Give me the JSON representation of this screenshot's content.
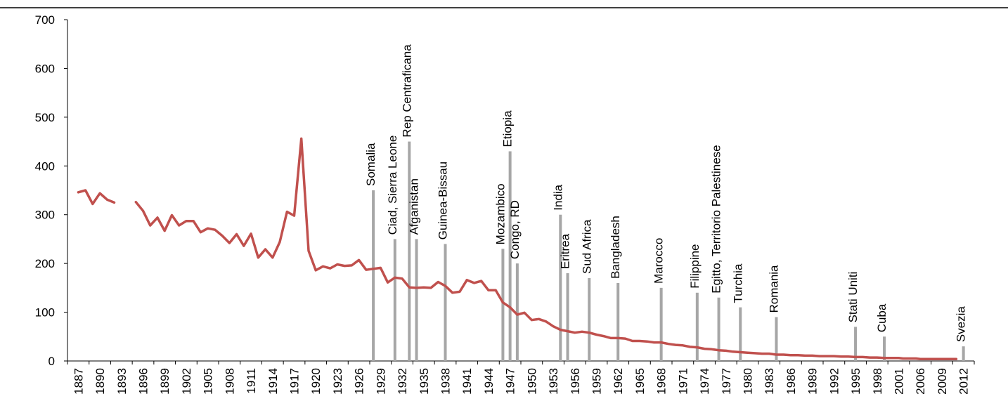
{
  "chart_data": {
    "type": "line",
    "title": "",
    "xlabel": "",
    "ylabel": "",
    "ylim": [
      0,
      700
    ],
    "yticks": [
      0,
      100,
      200,
      300,
      400,
      500,
      600,
      700
    ],
    "grid": false,
    "xtick_labels": [
      "1887",
      "1890",
      "1893",
      "1896",
      "1899",
      "1902",
      "1905",
      "1908",
      "1911",
      "1914",
      "1917",
      "1920",
      "1923",
      "1926",
      "1929",
      "1932",
      "1935",
      "1938",
      "1941",
      "1944",
      "1947",
      "1950",
      "1953",
      "1956",
      "1959",
      "1962",
      "1965",
      "1968",
      "1971",
      "1974",
      "1977",
      "1980",
      "1983",
      "1986",
      "1989",
      "1992",
      "1995",
      "1998",
      "2001",
      "2006",
      "2009",
      "2012"
    ],
    "series": [
      {
        "color": "#c0504d",
        "segments": [
          [
            [
              1887,
              346
            ],
            [
              1888,
              350
            ],
            [
              1889,
              322
            ],
            [
              1890,
              344
            ],
            [
              1891,
              331
            ],
            [
              1892,
              325
            ]
          ],
          [
            [
              1895,
              326
            ],
            [
              1896,
              308
            ],
            [
              1897,
              278
            ],
            [
              1898,
              294
            ],
            [
              1899,
              267
            ],
            [
              1900,
              299
            ],
            [
              1901,
              278
            ],
            [
              1902,
              287
            ],
            [
              1903,
              287
            ],
            [
              1904,
              264
            ],
            [
              1905,
              272
            ],
            [
              1906,
              269
            ],
            [
              1907,
              257
            ],
            [
              1908,
              242
            ],
            [
              1909,
              260
            ],
            [
              1910,
              236
            ],
            [
              1911,
              261
            ],
            [
              1912,
              212
            ],
            [
              1913,
              229
            ],
            [
              1914,
              212
            ],
            [
              1915,
              244
            ],
            [
              1916,
              306
            ],
            [
              1917,
              298
            ],
            [
              1918,
              456
            ],
            [
              1919,
              226
            ],
            [
              1920,
              186
            ],
            [
              1921,
              194
            ],
            [
              1922,
              190
            ],
            [
              1923,
              198
            ],
            [
              1924,
              195
            ],
            [
              1925,
              196
            ],
            [
              1926,
              207
            ],
            [
              1927,
              187
            ],
            [
              1928,
              189
            ],
            [
              1929,
              191
            ],
            [
              1930,
              161
            ],
            [
              1931,
              171
            ],
            [
              1932,
              169
            ],
            [
              1933,
              151
            ],
            [
              1934,
              150
            ],
            [
              1935,
              151
            ],
            [
              1936,
              150
            ],
            [
              1937,
              162
            ],
            [
              1938,
              154
            ],
            [
              1939,
              140
            ],
            [
              1940,
              142
            ],
            [
              1941,
              166
            ],
            [
              1942,
              160
            ],
            [
              1943,
              164
            ],
            [
              1944,
              145
            ],
            [
              1945,
              145
            ],
            [
              1946,
              120
            ],
            [
              1947,
              110
            ],
            [
              1948,
              95
            ],
            [
              1949,
              99
            ],
            [
              1950,
              84
            ],
            [
              1951,
              86
            ],
            [
              1952,
              81
            ],
            [
              1953,
              71
            ],
            [
              1954,
              64
            ],
            [
              1955,
              61
            ],
            [
              1956,
              58
            ],
            [
              1957,
              60
            ],
            [
              1958,
              58
            ],
            [
              1959,
              54
            ],
            [
              1960,
              51
            ],
            [
              1961,
              47
            ],
            [
              1962,
              47
            ],
            [
              1963,
              46
            ],
            [
              1964,
              41
            ],
            [
              1965,
              41
            ],
            [
              1966,
              40
            ],
            [
              1967,
              38
            ],
            [
              1968,
              38
            ],
            [
              1969,
              35
            ],
            [
              1970,
              33
            ],
            [
              1971,
              32
            ],
            [
              1972,
              29
            ],
            [
              1973,
              28
            ],
            [
              1974,
              25
            ],
            [
              1975,
              24
            ],
            [
              1976,
              22
            ],
            [
              1977,
              21
            ],
            [
              1978,
              19
            ],
            [
              1979,
              18
            ],
            [
              1980,
              17
            ],
            [
              1981,
              16
            ],
            [
              1982,
              15
            ],
            [
              1983,
              15
            ],
            [
              1984,
              13
            ],
            [
              1985,
              13
            ],
            [
              1986,
              12
            ],
            [
              1987,
              12
            ],
            [
              1988,
              11
            ],
            [
              1989,
              11
            ],
            [
              1990,
              10
            ],
            [
              1991,
              10
            ],
            [
              1992,
              10
            ],
            [
              1993,
              9
            ],
            [
              1994,
              9
            ],
            [
              1995,
              8
            ],
            [
              1996,
              8
            ],
            [
              1997,
              7
            ],
            [
              1998,
              7
            ],
            [
              1999,
              6
            ],
            [
              2000,
              6
            ],
            [
              2001,
              6
            ],
            [
              2002,
              5
            ],
            [
              2003,
              5
            ],
            [
              2004,
              5
            ],
            [
              2005,
              5
            ],
            [
              2006,
              4
            ],
            [
              2007,
              4
            ],
            [
              2008,
              4
            ],
            [
              2009,
              4
            ],
            [
              2010,
              4
            ],
            [
              2011,
              4
            ]
          ]
        ]
      }
    ],
    "reference_bars": {
      "color": "#a6a6a6",
      "items": [
        {
          "label": "Somalia",
          "x": 1928,
          "value": 350
        },
        {
          "label": "Ciad, Sierra Leone",
          "x": 1931,
          "value": 250
        },
        {
          "label": "Rep Centraficana",
          "x": 1933,
          "value": 450
        },
        {
          "label": "Afganistan",
          "x": 1934,
          "value": 250
        },
        {
          "label": "Guinea-Bissau",
          "x": 1938,
          "value": 240
        },
        {
          "label": "Mozambico",
          "x": 1946,
          "value": 230
        },
        {
          "label": "Etiopia",
          "x": 1947,
          "value": 430
        },
        {
          "label": "Congo, RD",
          "x": 1948,
          "value": 200
        },
        {
          "label": "India",
          "x": 1954,
          "value": 300
        },
        {
          "label": "Eritrea",
          "x": 1955,
          "value": 180
        },
        {
          "label": "Sud Africa",
          "x": 1958,
          "value": 170
        },
        {
          "label": "Bangladesh",
          "x": 1962,
          "value": 160
        },
        {
          "label": "Marocco",
          "x": 1968,
          "value": 150
        },
        {
          "label": "Filippine",
          "x": 1973,
          "value": 140
        },
        {
          "label": "Egitto, Territorio Palestinese",
          "x": 1976,
          "value": 130
        },
        {
          "label": "Turchia",
          "x": 1979,
          "value": 110
        },
        {
          "label": "Romania",
          "x": 1984,
          "value": 90
        },
        {
          "label": "Stati Uniti",
          "x": 1995,
          "value": 70
        },
        {
          "label": "Cuba",
          "x": 1999,
          "value": 50
        },
        {
          "label": "Svezia",
          "x": 2012,
          "value": 30
        }
      ]
    }
  }
}
